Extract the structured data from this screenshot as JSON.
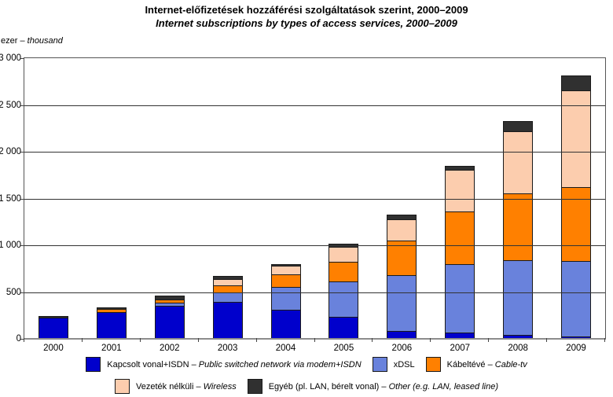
{
  "title": "Internet-előfizetések hozzáférési szolgáltatások szerint, 2000–2009",
  "subtitle": "Internet subscriptions by types of access services, 2000–2009",
  "unit_label": {
    "hu": "ezer",
    "sep": " – ",
    "en": "thousand"
  },
  "label_separator": " – ",
  "chart_data": {
    "type": "bar",
    "stacked": true,
    "title": "Internet-előfizetések hozzáférési szolgáltatások szerint, 2000–2009",
    "subtitle": "Internet subscriptions by types of access services, 2000–2009",
    "ylabel": "ezer – thousand",
    "ylim": [
      0,
      3000
    ],
    "ytick_step": 500,
    "yticks": [
      "0",
      "500",
      "1 000",
      "1 500",
      "2 000",
      "2 500",
      "3 000"
    ],
    "grid": true,
    "legend_position": "bottom",
    "legend_rows": [
      [
        0,
        1,
        2
      ],
      [
        3,
        4
      ]
    ],
    "categories": [
      "2000",
      "2001",
      "2002",
      "2003",
      "2004",
      "2005",
      "2006",
      "2007",
      "2008",
      "2009"
    ],
    "series": [
      {
        "name_hu": "Kapcsolt vonal+ISDN",
        "name_en": "Public switched network via modem+ISDN",
        "color": "#0000CC",
        "values": [
          215,
          280,
          345,
          385,
          305,
          230,
          75,
          60,
          30,
          15
        ]
      },
      {
        "name_hu": "xDSL",
        "name_en": "",
        "color": "#6982DC",
        "values": [
          0,
          0,
          35,
          105,
          245,
          375,
          600,
          735,
          800,
          805
        ]
      },
      {
        "name_hu": "Kábeltévé",
        "name_en": "Cable-tv",
        "color": "#FF8000",
        "values": [
          0,
          35,
          35,
          75,
          135,
          210,
          370,
          560,
          715,
          790
        ]
      },
      {
        "name_hu": "Vezeték nélküli",
        "name_en": "Wireless",
        "color": "#FCCDAE",
        "values": [
          0,
          0,
          0,
          70,
          90,
          160,
          230,
          445,
          660,
          1035
        ]
      },
      {
        "name_hu": "Egyéb (pl. LAN, bérelt vonal)",
        "name_en": "Other (e.g. LAN, leased line)",
        "color": "#303030",
        "values": [
          20,
          15,
          40,
          30,
          20,
          30,
          50,
          45,
          110,
          160
        ]
      }
    ]
  }
}
